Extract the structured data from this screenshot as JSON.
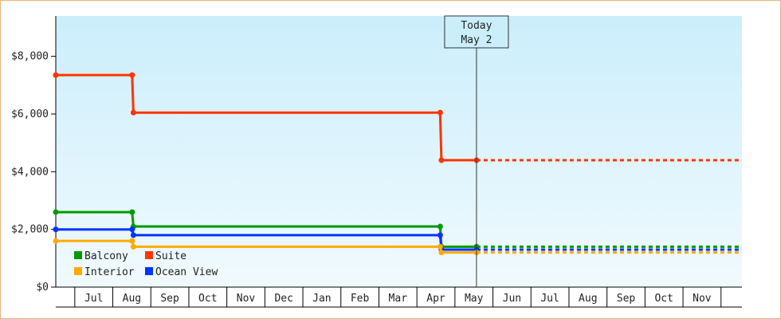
{
  "chart_data": {
    "type": "line",
    "step": true,
    "x_axis": {
      "tick_labels": [
        "Jul",
        "Aug",
        "Sep",
        "Oct",
        "Nov",
        "Dec",
        "Jan",
        "Feb",
        "Mar",
        "Apr",
        "May",
        "Jun",
        "Jul",
        "Aug",
        "Sep",
        "Oct",
        "Nov"
      ],
      "start": "2015-06-01",
      "end": "2016-11-30"
    },
    "y_axis": {
      "ticks": [
        0,
        2000,
        4000,
        6000,
        8000
      ],
      "tick_labels": [
        "$0",
        "$2,000",
        "$4,000",
        "$6,000",
        "$8,000"
      ],
      "ylim": [
        0,
        9400
      ]
    },
    "today_marker": {
      "line1": "Today",
      "line2": "May 2",
      "date": "2016-05-02"
    },
    "series": [
      {
        "name": "Suite",
        "color": "#ff3300",
        "points": [
          [
            "2015-06-01",
            7350
          ],
          [
            "2015-08-01",
            7350
          ],
          [
            "2015-08-02",
            6050
          ],
          [
            "2016-04-03",
            6050
          ],
          [
            "2016-04-04",
            4400
          ],
          [
            "2016-05-02",
            4400
          ]
        ],
        "projection": [
          [
            "2016-05-02",
            4400
          ],
          [
            "2016-11-30",
            4400
          ]
        ]
      },
      {
        "name": "Balcony",
        "color": "#009900",
        "points": [
          [
            "2015-06-01",
            2600
          ],
          [
            "2015-08-01",
            2600
          ],
          [
            "2015-08-02",
            2100
          ],
          [
            "2016-04-03",
            2100
          ],
          [
            "2016-04-04",
            1400
          ],
          [
            "2016-05-02",
            1400
          ]
        ],
        "projection": [
          [
            "2016-05-02",
            1400
          ],
          [
            "2016-11-30",
            1400
          ]
        ]
      },
      {
        "name": "Ocean View",
        "color": "#0033ff",
        "points": [
          [
            "2015-06-01",
            2000
          ],
          [
            "2015-08-01",
            2000
          ],
          [
            "2015-08-02",
            1800
          ],
          [
            "2016-04-03",
            1800
          ],
          [
            "2016-04-04",
            1300
          ],
          [
            "2016-05-02",
            1300
          ]
        ],
        "projection": [
          [
            "2016-05-02",
            1300
          ],
          [
            "2016-11-30",
            1300
          ]
        ]
      },
      {
        "name": "Interior",
        "color": "#ffaa00",
        "points": [
          [
            "2015-06-01",
            1600
          ],
          [
            "2015-08-01",
            1600
          ],
          [
            "2015-08-02",
            1400
          ],
          [
            "2016-04-03",
            1400
          ],
          [
            "2016-04-04",
            1200
          ],
          [
            "2016-05-02",
            1200
          ]
        ],
        "projection": [
          [
            "2016-05-02",
            1200
          ],
          [
            "2016-11-30",
            1200
          ]
        ]
      }
    ],
    "legend": {
      "placement": "bottom-left",
      "items": [
        {
          "label": "Balcony",
          "color": "#009900"
        },
        {
          "label": "Suite",
          "color": "#ff3300"
        },
        {
          "label": "Interior",
          "color": "#ffaa00"
        },
        {
          "label": "Ocean View",
          "color": "#0033ff"
        }
      ]
    }
  }
}
